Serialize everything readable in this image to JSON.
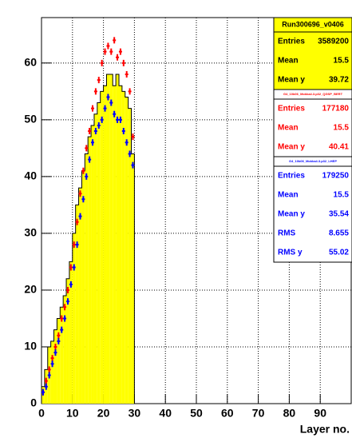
{
  "chart_data": {
    "type": "histogram",
    "xlabel": "Layer no.",
    "name": "Run300696_v0406",
    "color": "#ffff00",
    "bins": [
      0,
      1,
      2,
      3,
      4,
      5,
      6,
      7,
      8,
      9,
      10,
      11,
      12,
      13,
      14,
      15,
      16,
      17,
      18,
      19,
      20,
      21,
      22,
      23,
      24,
      25,
      26,
      27,
      28,
      29,
      30
    ],
    "values": [
      3,
      6,
      10,
      11,
      13,
      15,
      17,
      19,
      22,
      25,
      30,
      35,
      38,
      41,
      44,
      47,
      49,
      51,
      53,
      55,
      56,
      58,
      58,
      56,
      58,
      56,
      55,
      54,
      52,
      44
    ],
    "stats": [
      {
        "label": "Entries",
        "value": 3589200
      },
      {
        "label": "Mean",
        "value": 15.5
      },
      {
        "label": "Mean y",
        "value": 39.72
      }
    ],
    "series": [
      {
        "name": "G4_10b06_Mokka4.3.p32_QGSP_BERT",
        "color": "#ff0000",
        "x": [
          0.5,
          1.5,
          2.5,
          3.5,
          4.5,
          5.5,
          6.5,
          7.5,
          8.5,
          9.5,
          10.5,
          11.5,
          12.5,
          13.5,
          14.5,
          15.5,
          16.5,
          17.5,
          18.5,
          19.5,
          20.5,
          21.5,
          22.5,
          23.5,
          24.5,
          25.5,
          26.5,
          27.5,
          28.5,
          29.5
        ],
        "values": [
          2,
          4,
          6,
          8,
          10,
          12,
          15,
          17,
          20,
          24,
          28,
          32,
          37,
          41,
          45,
          48,
          52,
          55,
          57,
          60,
          62,
          63,
          62,
          64,
          61,
          62,
          60,
          58,
          55,
          47
        ],
        "stats": [
          {
            "label": "Entries",
            "value": 177180
          },
          {
            "label": "Mean",
            "value": 15.5
          },
          {
            "label": "Mean y",
            "value": 40.41
          }
        ]
      },
      {
        "name": "G4_10b06_Mokka4.3.p32_LHEP",
        "color": "#0000ff",
        "x": [
          0.5,
          1.5,
          2.5,
          3.5,
          4.5,
          5.5,
          6.5,
          7.5,
          8.5,
          9.5,
          10.5,
          11.5,
          12.5,
          13.5,
          14.5,
          15.5,
          16.5,
          17.5,
          18.5,
          19.5,
          20.5,
          21.5,
          22.5,
          23.5,
          24.5,
          25.5,
          26.5,
          27.5,
          28.5,
          29.5
        ],
        "values": [
          2,
          3,
          5,
          7,
          9,
          11,
          13,
          15,
          18,
          21,
          24,
          28,
          33,
          36,
          40,
          43,
          46,
          48,
          49,
          50,
          52,
          54,
          53,
          51,
          50,
          50,
          48,
          46,
          44,
          42
        ],
        "stats": [
          {
            "label": "Entries",
            "value": 179250
          },
          {
            "label": "Mean",
            "value": 15.5
          },
          {
            "label": "Mean y",
            "value": 35.54
          },
          {
            "label": "RMS",
            "value": 8.655
          },
          {
            "label": "RMS y",
            "value": 55.02
          }
        ]
      }
    ],
    "xlim": [
      0,
      100
    ],
    "ylim": [
      0,
      68
    ],
    "xticks": [
      0,
      10,
      20,
      30,
      40,
      50,
      60,
      70,
      80,
      90
    ],
    "yticks": [
      0,
      10,
      20,
      30,
      40,
      50,
      60
    ],
    "grid": true
  }
}
